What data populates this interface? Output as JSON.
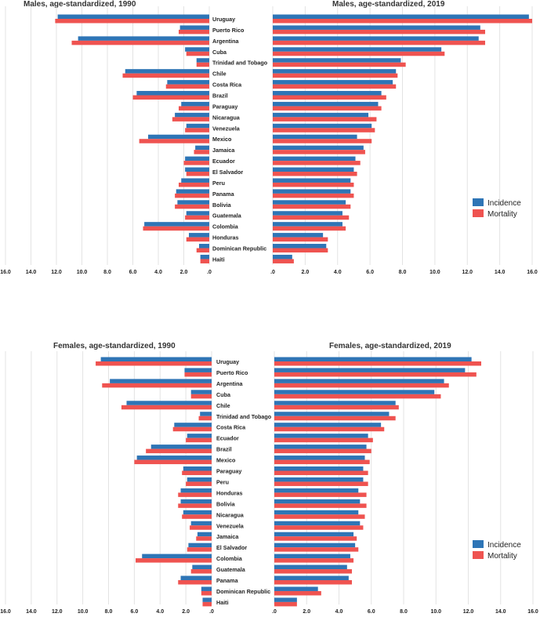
{
  "colors": {
    "incidence": "#2e75b6",
    "mortality": "#ef5350",
    "grid": "#e3e3e3",
    "text": "#222222"
  },
  "legend": {
    "incidence": "Incidence",
    "mortality": "Mortality"
  },
  "chart_data": [
    {
      "type": "bar",
      "title": "Males, age-standardized, 1990",
      "orientation": "horizontal-reversed",
      "xlim": [
        0,
        16
      ],
      "xticks": [
        "16.0",
        "14.0",
        "12.0",
        "10.0",
        "8.0",
        "6.0",
        "4.0",
        "2.0",
        ".0"
      ],
      "categories": [
        "Uruguay",
        "Puerto Rico",
        "Argentina",
        "Cuba",
        "Trinidad and Tobago",
        "Chile",
        "Costa Rica",
        "Brazil",
        "Paraguay",
        "Nicaragua",
        "Venezuela",
        "Mexico",
        "Jamaica",
        "Ecuador",
        "El Salvador",
        "Peru",
        "Panama",
        "Bolivia",
        "Guatemala",
        "Colombia",
        "Honduras",
        "Dominican Republic",
        "Haiti"
      ],
      "series": [
        {
          "name": "Incidence",
          "values": [
            11.9,
            2.3,
            10.3,
            1.9,
            1.0,
            6.6,
            3.3,
            5.7,
            2.2,
            2.7,
            1.8,
            4.8,
            1.1,
            1.9,
            1.9,
            2.2,
            2.6,
            2.5,
            1.8,
            5.1,
            1.6,
            0.8,
            0.7
          ]
        },
        {
          "name": "Mortality",
          "values": [
            12.1,
            2.4,
            10.8,
            1.8,
            1.0,
            6.8,
            3.4,
            6.0,
            2.4,
            2.9,
            1.9,
            5.5,
            1.2,
            2.0,
            1.8,
            2.4,
            2.7,
            2.7,
            1.9,
            5.2,
            1.8,
            1.0,
            0.7
          ]
        }
      ]
    },
    {
      "type": "bar",
      "title": "Males, age-standardized, 2019",
      "orientation": "horizontal",
      "xlim": [
        0,
        16
      ],
      "xticks": [
        ".0",
        "2.0",
        "4.0",
        "6.0",
        "8.0",
        "10.0",
        "12.0",
        "14.0",
        "16.0"
      ],
      "categories": [
        "Uruguay",
        "Puerto Rico",
        "Argentina",
        "Cuba",
        "Trinidad and Tobago",
        "Chile",
        "Costa Rica",
        "Brazil",
        "Paraguay",
        "Nicaragua",
        "Venezuela",
        "Mexico",
        "Jamaica",
        "Ecuador",
        "El Salvador",
        "Peru",
        "Panama",
        "Bolivia",
        "Guatemala",
        "Colombia",
        "Honduras",
        "Dominican Republic",
        "Haiti"
      ],
      "series": [
        {
          "name": "Incidence",
          "values": [
            15.8,
            12.8,
            12.7,
            10.4,
            7.9,
            7.6,
            7.4,
            6.7,
            6.5,
            5.9,
            6.1,
            5.2,
            5.6,
            5.1,
            5.0,
            4.8,
            4.8,
            4.5,
            4.3,
            4.3,
            3.1,
            3.3,
            1.2
          ]
        },
        {
          "name": "Mortality",
          "values": [
            16.0,
            13.1,
            13.1,
            10.6,
            8.2,
            7.7,
            7.6,
            7.0,
            6.7,
            6.4,
            6.3,
            6.1,
            5.7,
            5.4,
            5.2,
            5.0,
            5.0,
            4.8,
            4.7,
            4.5,
            3.4,
            3.4,
            1.3
          ]
        }
      ]
    },
    {
      "type": "bar",
      "title": "Females, age-standardized, 1990",
      "orientation": "horizontal-reversed",
      "xlim": [
        0,
        16
      ],
      "xticks": [
        "16.0",
        "14.0",
        "12.0",
        "10.0",
        "8.0",
        "6.0",
        "4.0",
        "2.0",
        ".0"
      ],
      "categories": [
        "Uruguay",
        "Puerto Rico",
        "Argentina",
        "Cuba",
        "Chile",
        "Trinidad and Tobago",
        "Costa Rica",
        "Ecuador",
        "Brazil",
        "Mexico",
        "Paraguay",
        "Peru",
        "Honduras",
        "Bolivia",
        "Nicaragua",
        "Venezuela",
        "Jamaica",
        "El Salvador",
        "Colombia",
        "Guatemala",
        "Panama",
        "Dominican Republic",
        "Haiti"
      ],
      "series": [
        {
          "name": "Incidence",
          "values": [
            8.6,
            2.1,
            7.9,
            1.6,
            6.6,
            0.9,
            2.9,
            1.9,
            4.7,
            5.8,
            2.2,
            1.9,
            2.4,
            2.4,
            2.2,
            1.6,
            1.1,
            1.8,
            5.4,
            1.5,
            2.4,
            0.8,
            0.7
          ]
        },
        {
          "name": "Mortality",
          "values": [
            9.0,
            2.1,
            8.5,
            1.6,
            7.0,
            1.0,
            3.0,
            2.0,
            5.1,
            6.0,
            2.3,
            2.0,
            2.6,
            2.6,
            2.3,
            1.7,
            1.2,
            1.9,
            5.9,
            1.6,
            2.6,
            0.8,
            0.7
          ]
        }
      ]
    },
    {
      "type": "bar",
      "title": "Females, age-standardized, 2019",
      "orientation": "horizontal",
      "xlim": [
        0,
        16
      ],
      "xticks": [
        ".0",
        "2.0",
        "4.0",
        "6.0",
        "8.0",
        "10.0",
        "12.0",
        "14.0",
        "16.0"
      ],
      "categories": [
        "Uruguay",
        "Puerto Rico",
        "Argentina",
        "Cuba",
        "Chile",
        "Trinidad and Tobago",
        "Costa Rica",
        "Ecuador",
        "Brazil",
        "Mexico",
        "Paraguay",
        "Peru",
        "Honduras",
        "Bolivia",
        "Nicaragua",
        "Venezuela",
        "Jamaica",
        "El Salvador",
        "Colombia",
        "Guatemala",
        "Panama",
        "Dominican Republic",
        "Haiti"
      ],
      "series": [
        {
          "name": "Incidence",
          "values": [
            12.2,
            11.8,
            10.5,
            9.9,
            7.5,
            7.1,
            6.6,
            5.8,
            5.7,
            5.6,
            5.5,
            5.5,
            5.2,
            5.3,
            5.2,
            5.3,
            4.9,
            5.0,
            4.7,
            4.5,
            4.6,
            2.7,
            1.4
          ]
        },
        {
          "name": "Mortality",
          "values": [
            12.8,
            12.5,
            10.8,
            10.3,
            7.7,
            7.5,
            6.8,
            6.1,
            6.0,
            5.9,
            5.8,
            5.8,
            5.7,
            5.7,
            5.6,
            5.5,
            5.1,
            5.2,
            4.9,
            4.8,
            4.8,
            2.9,
            1.4
          ]
        }
      ]
    }
  ]
}
